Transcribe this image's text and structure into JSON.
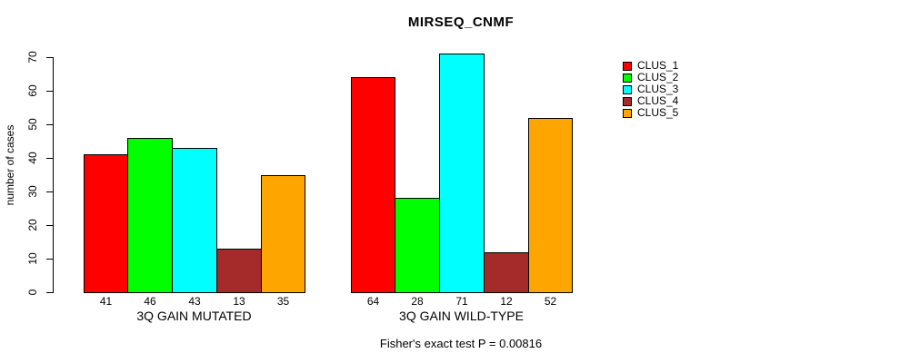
{
  "chart_data": {
    "type": "bar",
    "title": "MIRSEQ_CNMF",
    "ylabel": "number of cases",
    "xlabel": "",
    "ylim": [
      0,
      70
    ],
    "yticks": [
      0,
      10,
      20,
      30,
      40,
      50,
      60,
      70
    ],
    "grid": false,
    "legend_position": "right",
    "bar_value_labels": true,
    "groups": [
      {
        "label": "3Q GAIN MUTATED",
        "values": [
          41,
          46,
          43,
          13,
          35
        ]
      },
      {
        "label": "3Q GAIN WILD-TYPE",
        "values": [
          64,
          28,
          71,
          12,
          52
        ]
      }
    ],
    "series_names": [
      "CLUS_1",
      "CLUS_2",
      "CLUS_3",
      "CLUS_4",
      "CLUS_5"
    ],
    "colors": [
      "#FF0000",
      "#00FF00",
      "#00FFFF",
      "#A52A2A",
      "#FFA500"
    ],
    "annotation": "Fisher's exact test P = 0.00816"
  }
}
